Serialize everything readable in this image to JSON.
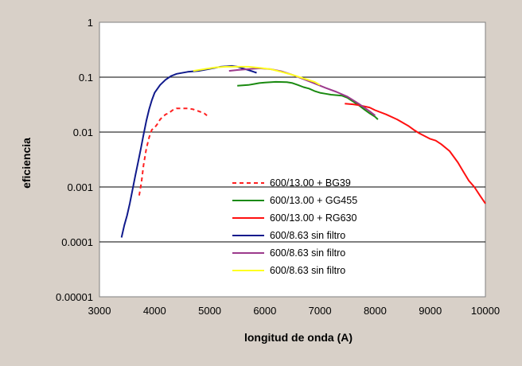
{
  "chart_data": {
    "type": "line",
    "xlabel": "longitud de onda (A)",
    "ylabel": "eficiencia",
    "y_scale": "log",
    "xlim": [
      3000,
      10000
    ],
    "ylim": [
      1e-05,
      1
    ],
    "x_ticks": [
      "3000",
      "4000",
      "5000",
      "6000",
      "7000",
      "8000",
      "9000",
      "10000"
    ],
    "y_ticks": [
      "1",
      "0.1",
      "0.01",
      "0.001",
      "0.0001",
      "0.00001"
    ],
    "grid": "horizontal",
    "legend_position": "inside-bottom-center",
    "series": [
      {
        "name": "600/13.00 + BG39",
        "color": "#ff2020",
        "style": "dashed",
        "points": [
          [
            3720,
            0.0007
          ],
          [
            3760,
            0.0012
          ],
          [
            3800,
            0.0025
          ],
          [
            3850,
            0.005
          ],
          [
            3900,
            0.008
          ],
          [
            3950,
            0.011
          ],
          [
            4000,
            0.012
          ],
          [
            4050,
            0.014
          ],
          [
            4100,
            0.017
          ],
          [
            4150,
            0.019
          ],
          [
            4200,
            0.021
          ],
          [
            4250,
            0.022
          ],
          [
            4300,
            0.024
          ],
          [
            4350,
            0.026
          ],
          [
            4400,
            0.027
          ],
          [
            4500,
            0.027
          ],
          [
            4600,
            0.027
          ],
          [
            4700,
            0.026
          ],
          [
            4800,
            0.024
          ],
          [
            4900,
            0.022
          ],
          [
            4950,
            0.02
          ]
        ]
      },
      {
        "name": "600/13.00 + GG455",
        "color": "#1a8a10",
        "style": "solid",
        "points": [
          [
            5500,
            0.07
          ],
          [
            5600,
            0.071
          ],
          [
            5700,
            0.072
          ],
          [
            5800,
            0.075
          ],
          [
            5900,
            0.078
          ],
          [
            6000,
            0.08
          ],
          [
            6200,
            0.082
          ],
          [
            6400,
            0.081
          ],
          [
            6500,
            0.078
          ],
          [
            6600,
            0.072
          ],
          [
            6700,
            0.066
          ],
          [
            6800,
            0.062
          ],
          [
            6900,
            0.056
          ],
          [
            7000,
            0.052
          ],
          [
            7100,
            0.05
          ],
          [
            7200,
            0.048
          ],
          [
            7300,
            0.047
          ],
          [
            7400,
            0.046
          ],
          [
            7500,
            0.042
          ],
          [
            7600,
            0.036
          ],
          [
            7700,
            0.031
          ],
          [
            7800,
            0.026
          ],
          [
            7900,
            0.022
          ],
          [
            8000,
            0.019
          ],
          [
            8050,
            0.017
          ]
        ]
      },
      {
        "name": "600/13.00 + RG630",
        "color": "#ff1010",
        "style": "solid",
        "points": [
          [
            7450,
            0.033
          ],
          [
            7600,
            0.032
          ],
          [
            7700,
            0.031
          ],
          [
            7900,
            0.028
          ],
          [
            8000,
            0.025
          ],
          [
            8200,
            0.021
          ],
          [
            8400,
            0.017
          ],
          [
            8600,
            0.013
          ],
          [
            8700,
            0.011
          ],
          [
            8800,
            0.0095
          ],
          [
            9000,
            0.0075
          ],
          [
            9100,
            0.007
          ],
          [
            9200,
            0.006
          ],
          [
            9350,
            0.0045
          ],
          [
            9500,
            0.0028
          ],
          [
            9600,
            0.0019
          ],
          [
            9700,
            0.0013
          ],
          [
            9800,
            0.001
          ],
          [
            9900,
            0.0007
          ],
          [
            10000,
            0.0005
          ]
        ]
      },
      {
        "name": "600/8.63 sin filtro",
        "color": "#101a8c",
        "style": "solid",
        "points": [
          [
            3400,
            0.00012
          ],
          [
            3450,
            0.0002
          ],
          [
            3500,
            0.0003
          ],
          [
            3550,
            0.0005
          ],
          [
            3600,
            0.0009
          ],
          [
            3650,
            0.0016
          ],
          [
            3700,
            0.0028
          ],
          [
            3750,
            0.005
          ],
          [
            3800,
            0.009
          ],
          [
            3850,
            0.016
          ],
          [
            3900,
            0.026
          ],
          [
            3950,
            0.038
          ],
          [
            4000,
            0.052
          ],
          [
            4100,
            0.072
          ],
          [
            4200,
            0.09
          ],
          [
            4300,
            0.105
          ],
          [
            4400,
            0.115
          ],
          [
            4600,
            0.125
          ],
          [
            4800,
            0.13
          ],
          [
            5000,
            0.142
          ],
          [
            5200,
            0.155
          ],
          [
            5400,
            0.16
          ],
          [
            5500,
            0.155
          ],
          [
            5600,
            0.145
          ],
          [
            5700,
            0.135
          ],
          [
            5800,
            0.125
          ],
          [
            5850,
            0.12
          ]
        ]
      },
      {
        "name": "600/8.63 sin filtro",
        "color": "#9c3a8c",
        "style": "solid",
        "points": [
          [
            5350,
            0.13
          ],
          [
            5500,
            0.135
          ],
          [
            5700,
            0.14
          ],
          [
            5900,
            0.145
          ],
          [
            6100,
            0.14
          ],
          [
            6300,
            0.128
          ],
          [
            6500,
            0.11
          ],
          [
            6700,
            0.092
          ],
          [
            6900,
            0.077
          ],
          [
            7100,
            0.064
          ],
          [
            7300,
            0.054
          ],
          [
            7500,
            0.044
          ],
          [
            7700,
            0.033
          ],
          [
            7900,
            0.024
          ],
          [
            8000,
            0.02
          ]
        ]
      },
      {
        "name": "600/8.63 sin filtro",
        "color": "#ffff20",
        "style": "solid",
        "points": [
          [
            4700,
            0.13
          ],
          [
            4900,
            0.14
          ],
          [
            5100,
            0.15
          ],
          [
            5300,
            0.155
          ],
          [
            5500,
            0.155
          ],
          [
            5700,
            0.155
          ],
          [
            5900,
            0.148
          ],
          [
            6100,
            0.14
          ],
          [
            6300,
            0.125
          ],
          [
            6500,
            0.11
          ],
          [
            6700,
            0.095
          ],
          [
            6900,
            0.082
          ],
          [
            7000,
            0.072
          ]
        ]
      }
    ]
  }
}
